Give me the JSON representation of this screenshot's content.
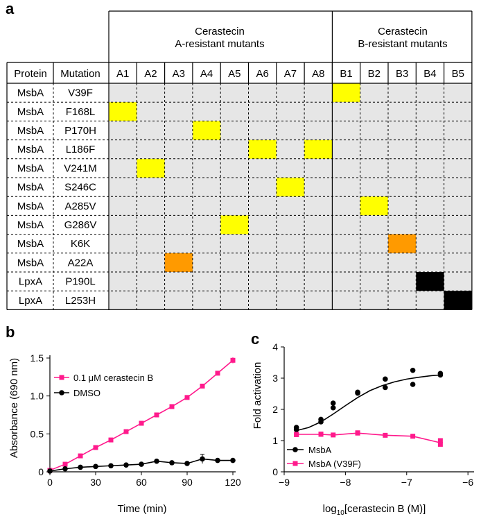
{
  "panels": {
    "a": "a",
    "b": "b",
    "c": "c"
  },
  "table": {
    "group_a_line1": "Cerastecin",
    "group_a_line2": "A-resistant mutants",
    "group_b_line1": "Cerastecin",
    "group_b_line2": "B-resistant mutants",
    "col_protein": "Protein",
    "col_mutation": "Mutation",
    "mutant_columns": [
      "A1",
      "A2",
      "A3",
      "A4",
      "A5",
      "A6",
      "A7",
      "A8",
      "B1",
      "B2",
      "B3",
      "B4",
      "B5"
    ],
    "rows": [
      {
        "protein": "MsbA",
        "mutation": "V39F"
      },
      {
        "protein": "MsbA",
        "mutation": "F168L"
      },
      {
        "protein": "MsbA",
        "mutation": "P170H"
      },
      {
        "protein": "MsbA",
        "mutation": "L186F"
      },
      {
        "protein": "MsbA",
        "mutation": "V241M"
      },
      {
        "protein": "MsbA",
        "mutation": "S246C"
      },
      {
        "protein": "MsbA",
        "mutation": "A285V"
      },
      {
        "protein": "MsbA",
        "mutation": "G286V"
      },
      {
        "protein": "MsbA",
        "mutation": "K6K"
      },
      {
        "protein": "MsbA",
        "mutation": "A22A"
      },
      {
        "protein": "LpxA",
        "mutation": "P190L"
      },
      {
        "protein": "LpxA",
        "mutation": "L253H"
      }
    ],
    "highlights": [
      {
        "row": 0,
        "col": 8,
        "color": "yellow"
      },
      {
        "row": 1,
        "col": 0,
        "color": "yellow"
      },
      {
        "row": 2,
        "col": 3,
        "color": "yellow"
      },
      {
        "row": 3,
        "col": 5,
        "color": "yellow"
      },
      {
        "row": 3,
        "col": 7,
        "color": "yellow"
      },
      {
        "row": 4,
        "col": 1,
        "color": "yellow"
      },
      {
        "row": 5,
        "col": 6,
        "color": "yellow"
      },
      {
        "row": 6,
        "col": 9,
        "color": "yellow"
      },
      {
        "row": 7,
        "col": 4,
        "color": "yellow"
      },
      {
        "row": 8,
        "col": 10,
        "color": "orange"
      },
      {
        "row": 9,
        "col": 2,
        "color": "orange"
      },
      {
        "row": 10,
        "col": 11,
        "color": "black"
      },
      {
        "row": 11,
        "col": 12,
        "color": "black"
      }
    ]
  },
  "colors": {
    "yellow": "#ffff00",
    "orange": "#ff9a00",
    "black": "#000000",
    "cell_bg": "#e6e6e6",
    "pink": "#ff1a8c"
  },
  "chart_data": [
    {
      "type": "line",
      "xlabel": "Time (min)",
      "ylabel": "Absorbance (690 nm)",
      "xlim": [
        0,
        120
      ],
      "ylim": [
        0,
        1.5
      ],
      "xticks": [
        "0",
        "30",
        "60",
        "90",
        "120"
      ],
      "yticks": [
        "0",
        "0.5",
        "1.0",
        "1.5"
      ],
      "legend": "top-left",
      "series": [
        {
          "name": "0.1 μM cerastecin B",
          "color": "#ff1a8c",
          "marker": "square",
          "x": [
            0,
            10,
            20,
            30,
            40,
            50,
            60,
            70,
            80,
            90,
            100,
            110,
            120
          ],
          "y": [
            0.02,
            0.1,
            0.21,
            0.32,
            0.42,
            0.53,
            0.64,
            0.75,
            0.86,
            0.98,
            1.13,
            1.3,
            1.47
          ]
        },
        {
          "name": "DMSO",
          "color": "#000000",
          "marker": "circle",
          "x": [
            0,
            10,
            20,
            30,
            40,
            50,
            60,
            70,
            80,
            90,
            100,
            110,
            120
          ],
          "y": [
            0.01,
            0.04,
            0.06,
            0.07,
            0.08,
            0.09,
            0.1,
            0.14,
            0.12,
            0.11,
            0.17,
            0.15,
            0.15
          ]
        }
      ]
    },
    {
      "type": "scatter",
      "xlabel": "log10[cerastecin B (M)]",
      "ylabel": "Fold activation",
      "xlim": [
        -9,
        -5.9
      ],
      "ylim": [
        0,
        4
      ],
      "xticks": [
        "−9",
        "−8",
        "−7",
        "−6"
      ],
      "yticks": [
        "0",
        "1",
        "2",
        "3",
        "4"
      ],
      "legend": "bottom-left",
      "series": [
        {
          "name": "MsbA",
          "color": "#000000",
          "marker": "circle",
          "points": [
            [
              -8.8,
              1.42
            ],
            [
              -8.8,
              1.35
            ],
            [
              -8.4,
              1.68
            ],
            [
              -8.4,
              1.6
            ],
            [
              -8.2,
              2.2
            ],
            [
              -8.2,
              2.05
            ],
            [
              -7.8,
              2.55
            ],
            [
              -7.8,
              2.52
            ],
            [
              -7.35,
              2.97
            ],
            [
              -7.35,
              2.7
            ],
            [
              -6.9,
              3.25
            ],
            [
              -6.9,
              2.8
            ],
            [
              -6.45,
              3.15
            ],
            [
              -6.45,
              3.1
            ]
          ],
          "fit_x": [
            -8.8,
            -8.6,
            -8.4,
            -8.2,
            -8.0,
            -7.8,
            -7.6,
            -7.4,
            -7.2,
            -7.0,
            -6.8,
            -6.6,
            -6.45
          ],
          "fit_y": [
            1.32,
            1.42,
            1.6,
            1.85,
            2.12,
            2.38,
            2.6,
            2.76,
            2.88,
            2.97,
            3.03,
            3.08,
            3.1
          ]
        },
        {
          "name": "MsbA (V39F)",
          "color": "#ff1a8c",
          "marker": "square",
          "points": [
            [
              -8.8,
              1.2
            ],
            [
              -8.8,
              1.19
            ],
            [
              -8.4,
              1.21
            ],
            [
              -8.4,
              1.2
            ],
            [
              -8.2,
              1.18
            ],
            [
              -7.8,
              1.25
            ],
            [
              -7.8,
              1.24
            ],
            [
              -7.35,
              1.17
            ],
            [
              -6.9,
              1.14
            ],
            [
              -6.45,
              1.0
            ],
            [
              -6.45,
              0.88
            ]
          ],
          "line_x": [
            -8.8,
            -8.4,
            -8.2,
            -7.8,
            -7.35,
            -6.9,
            -6.45
          ],
          "line_y": [
            1.2,
            1.2,
            1.18,
            1.24,
            1.17,
            1.14,
            0.93
          ]
        }
      ]
    }
  ]
}
